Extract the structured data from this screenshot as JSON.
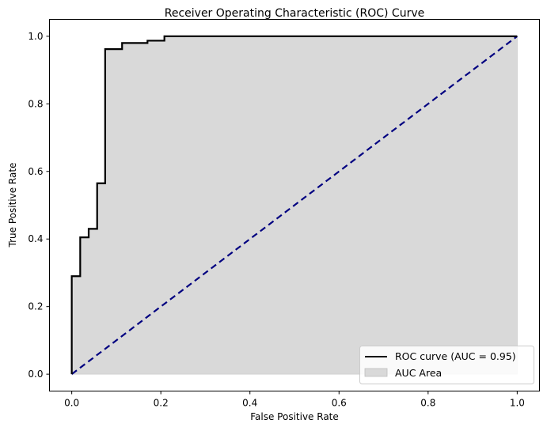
{
  "chart_data": {
    "type": "line",
    "title": "Receiver Operating Characteristic (ROC) Curve",
    "xlabel": "False Positive Rate",
    "ylabel": "True Positive Rate",
    "xlim": [
      -0.05,
      1.05
    ],
    "ylim": [
      -0.05,
      1.05
    ],
    "xticks": [
      0.0,
      0.2,
      0.4,
      0.6,
      0.8,
      1.0
    ],
    "yticks": [
      0.0,
      0.2,
      0.4,
      0.6,
      0.8,
      1.0
    ],
    "xtick_labels": [
      "0.0",
      "0.2",
      "0.4",
      "0.6",
      "0.8",
      "1.0"
    ],
    "ytick_labels": [
      "0.0",
      "0.2",
      "0.4",
      "0.6",
      "0.8",
      "1.0"
    ],
    "grid": false,
    "legend_position": "lower-right",
    "series": [
      {
        "name": "ROC curve (AUC = 0.95)",
        "kind": "line",
        "color": "#000000",
        "style": "solid",
        "x": [
          0.0,
          0.0,
          0.019,
          0.019,
          0.038,
          0.038,
          0.057,
          0.057,
          0.075,
          0.075,
          0.113,
          0.113,
          0.17,
          0.17,
          0.208,
          0.208,
          1.0
        ],
        "y": [
          0.0,
          0.29,
          0.29,
          0.405,
          0.405,
          0.43,
          0.43,
          0.565,
          0.565,
          0.962,
          0.962,
          0.98,
          0.98,
          0.987,
          0.987,
          1.0,
          1.0
        ]
      },
      {
        "name": "AUC Area",
        "kind": "area",
        "color": "#d9d9d9"
      },
      {
        "name": "",
        "kind": "line",
        "color": "#000080",
        "style": "dashed",
        "x": [
          0.0,
          1.0
        ],
        "y": [
          0.0,
          1.0
        ]
      }
    ]
  }
}
